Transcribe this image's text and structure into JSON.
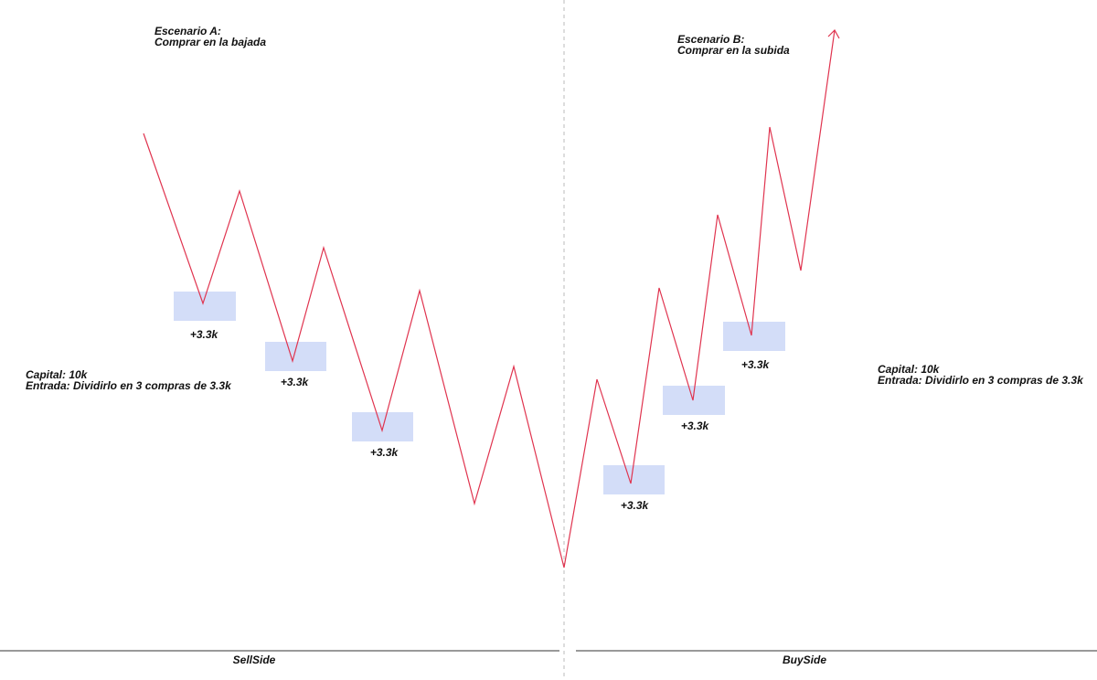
{
  "scenario_a": {
    "title": "Escenario A:",
    "subtitle": "Comprar en la bajada",
    "capital": "Capital: 10k",
    "entry": "Entrada: Dividirlo en 3 compras de 3.3k",
    "buys": [
      "+3.3k",
      "+3.3k",
      "+3.3k"
    ],
    "side": "SellSide"
  },
  "scenario_b": {
    "title": "Escenario B:",
    "subtitle": "Comprar en la subida",
    "capital": "Capital: 10k",
    "entry": "Entrada: Dividirlo en 3 compras de 3.3k",
    "buys": [
      "+3.3k",
      "+3.3k",
      "+3.3k"
    ],
    "side": "BuySide"
  }
}
